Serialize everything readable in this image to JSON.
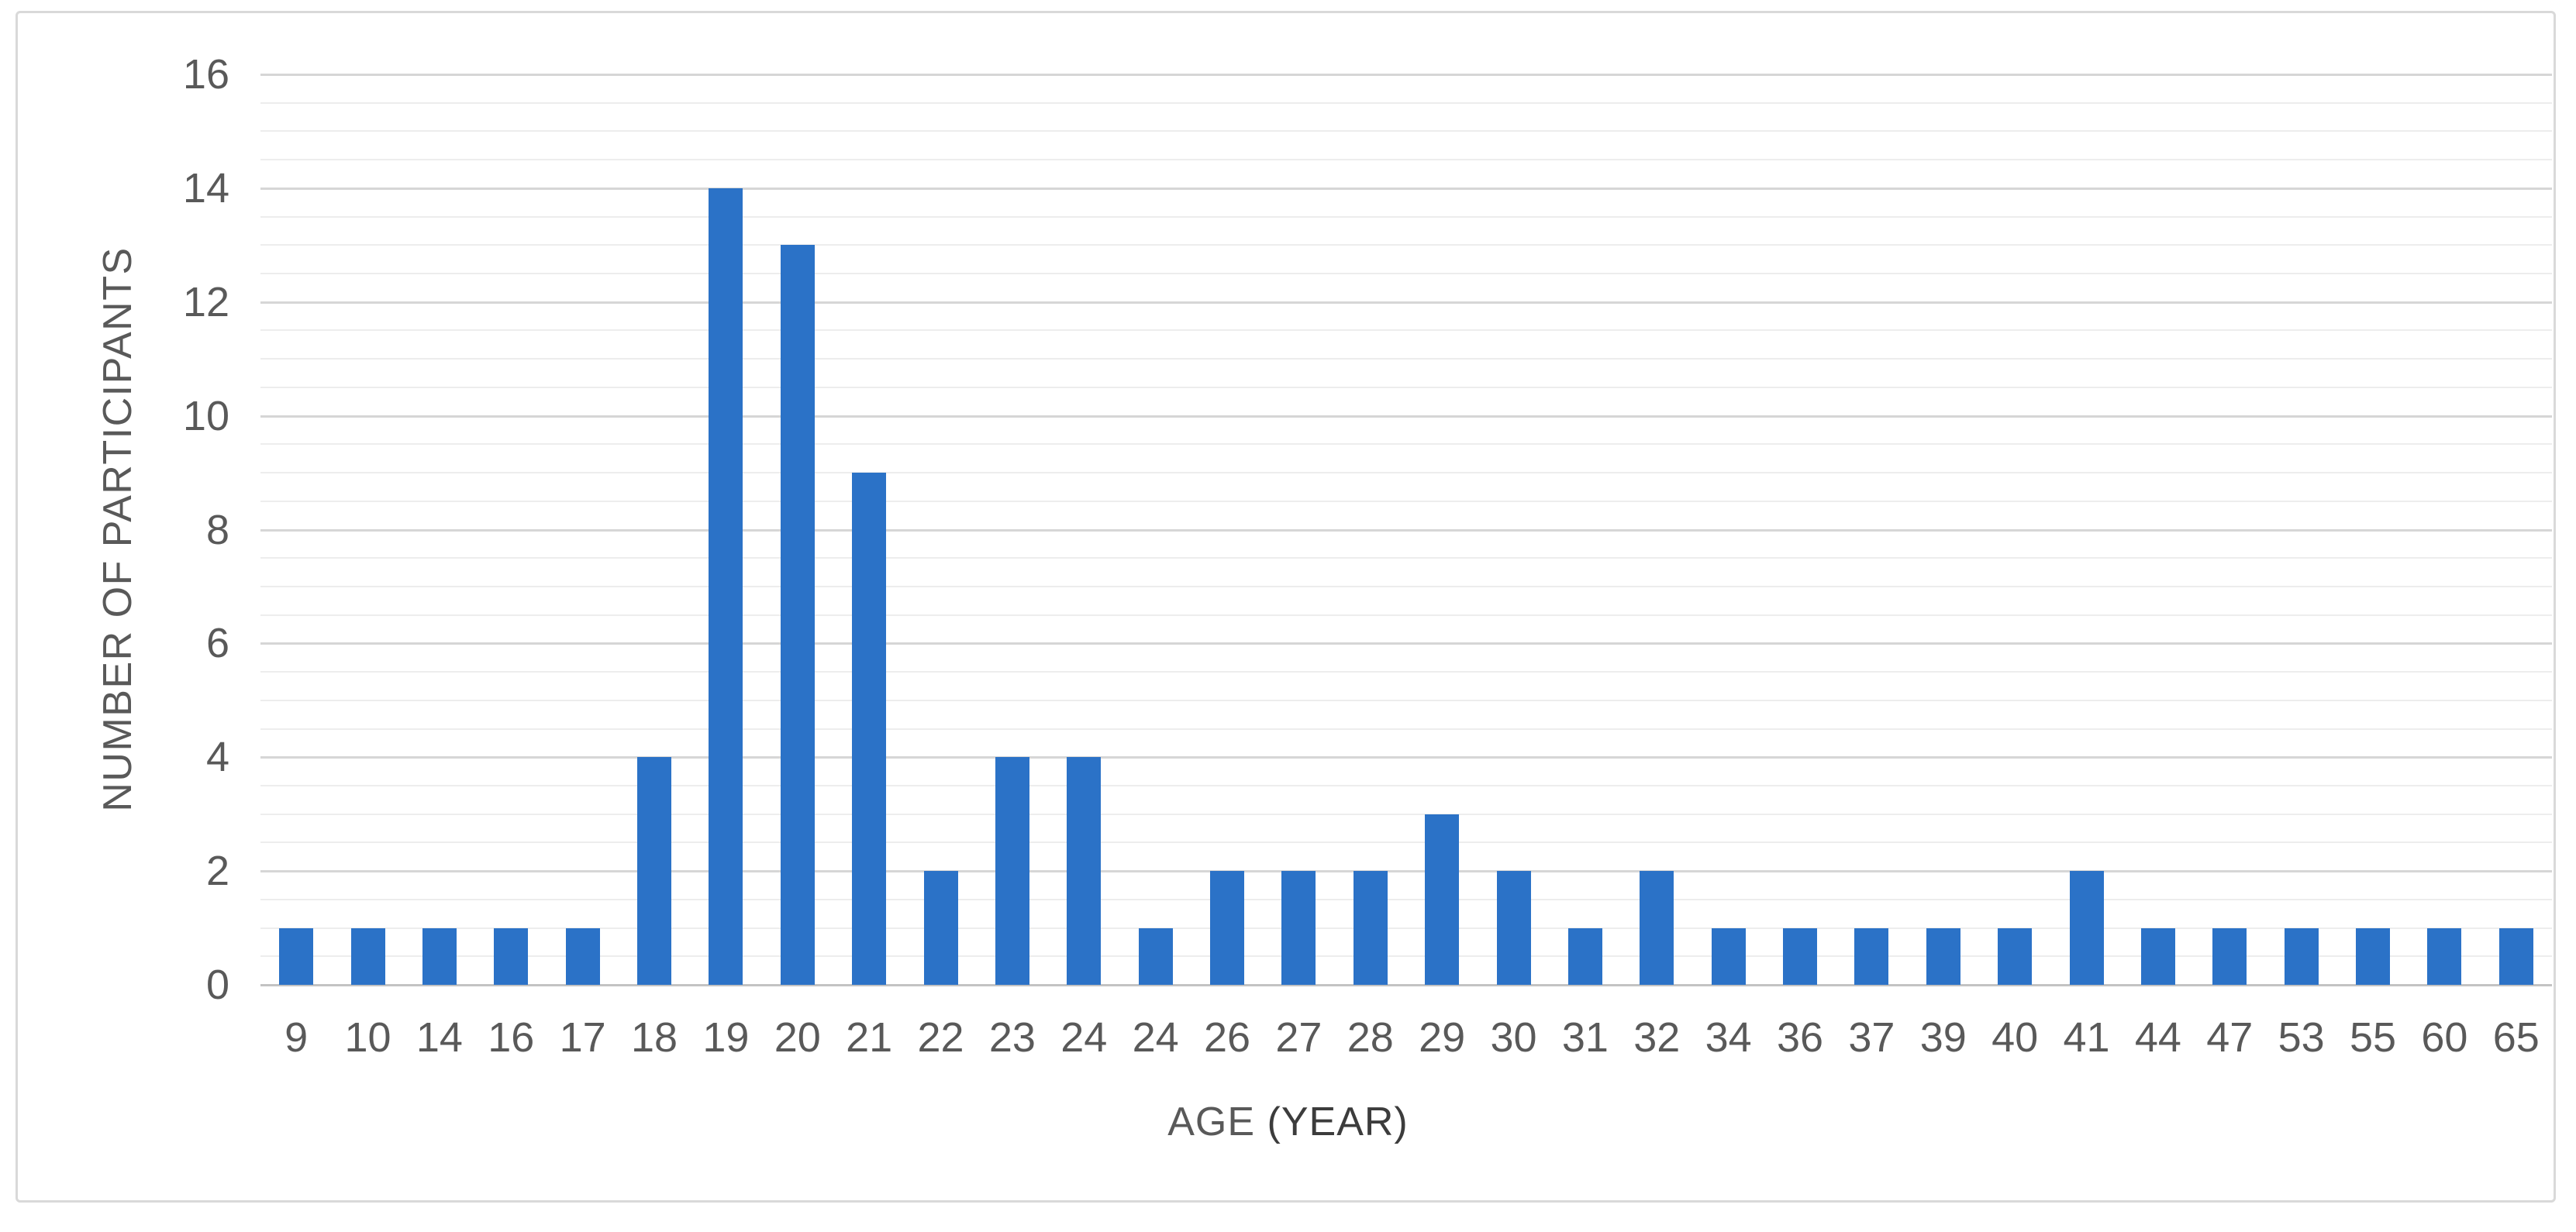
{
  "chart_data": {
    "type": "bar",
    "categories": [
      "9",
      "10",
      "14",
      "16",
      "17",
      "18",
      "19",
      "20",
      "21",
      "22",
      "23",
      "24",
      "24",
      "26",
      "27",
      "28",
      "29",
      "30",
      "31",
      "32",
      "34",
      "36",
      "37",
      "39",
      "40",
      "41",
      "44",
      "47",
      "53",
      "55",
      "60",
      "65"
    ],
    "values": [
      1,
      1,
      1,
      1,
      1,
      4,
      14,
      13,
      9,
      2,
      4,
      4,
      1,
      2,
      2,
      2,
      3,
      2,
      1,
      2,
      1,
      1,
      1,
      1,
      1,
      2,
      1,
      1,
      1,
      1,
      1,
      1
    ],
    "title": "",
    "xlabel": "AGE (YEAR)",
    "xlabel_parts": {
      "primary": "AGE",
      "secondary": " (YEAR)"
    },
    "ylabel": "NUMBER OF PARTICIPANTS",
    "ylim": [
      0,
      16
    ],
    "yticks": [
      0,
      2,
      4,
      6,
      8,
      10,
      12,
      14,
      16
    ],
    "ytick_major_step": 2,
    "ytick_minor_step": 0.5,
    "grid": "on",
    "legend": "none",
    "colors": {
      "bar": "#2B72C7",
      "grid_major": "#D6D6D6",
      "grid_minor": "#EDEDED",
      "axis_line": "#C3C3C3",
      "tick_text": "#595959",
      "axis_title_text": "#595959",
      "xlabel_secondary_text": "#3C3C3C",
      "frame_border": "#D9D9D9",
      "background": "#FFFFFF"
    }
  }
}
